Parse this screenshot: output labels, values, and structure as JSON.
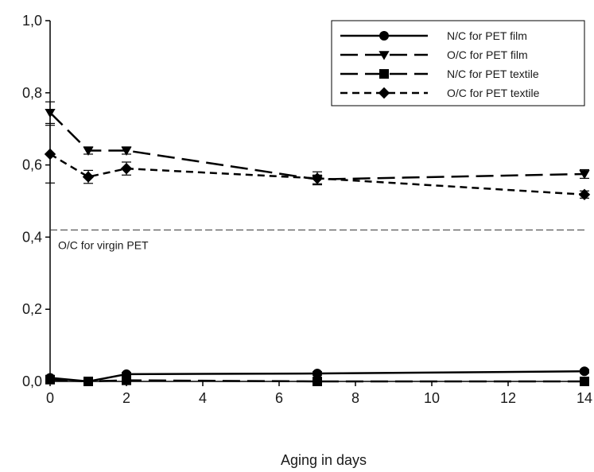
{
  "chart_data": {
    "type": "line",
    "xlabel": "Aging in days",
    "ylabel": "",
    "xlim": [
      0,
      14
    ],
    "ylim": [
      0,
      1.0
    ],
    "x_ticks": [
      0,
      2,
      4,
      6,
      8,
      10,
      12,
      14
    ],
    "x_tick_labels": [
      "0",
      "2",
      "4",
      "6",
      "8",
      "10",
      "12",
      "14"
    ],
    "y_ticks": [
      0,
      0.2,
      0.4,
      0.6,
      0.8,
      1.0
    ],
    "y_tick_labels": [
      "0,0",
      "0,2",
      "0,4",
      "0,6",
      "0,8",
      "1,0"
    ],
    "grid": false,
    "legend_position": "top-right",
    "series": [
      {
        "name": "N/C for PET film",
        "marker": "circle",
        "dash": "solid",
        "x": [
          0,
          1,
          2,
          7,
          14
        ],
        "y": [
          0.01,
          0.0,
          0.02,
          0.022,
          0.028
        ],
        "err": [
          0.005,
          0.003,
          0.005,
          0.005,
          0.005
        ]
      },
      {
        "name": "O/C for PET film",
        "marker": "triangle-down",
        "dash": "long-dash",
        "x": [
          0,
          1,
          2,
          7,
          14
        ],
        "y": [
          0.745,
          0.64,
          0.64,
          0.56,
          0.575
        ],
        "err": [
          0.03,
          0.01,
          0.01,
          0.012,
          0.012
        ]
      },
      {
        "name": "N/C for PET textile",
        "marker": "square",
        "dash": "long-dash",
        "x": [
          0,
          1,
          2,
          7,
          14
        ],
        "y": [
          0.005,
          0.0,
          0.003,
          0.0,
          0.0
        ],
        "err": [
          0.003,
          0.002,
          0.002,
          0.002,
          0.002
        ]
      },
      {
        "name": "O/C for PET textile",
        "marker": "diamond",
        "dash": "short-dash",
        "x": [
          0,
          1,
          2,
          7,
          14
        ],
        "y": [
          0.63,
          0.567,
          0.59,
          0.563,
          0.518
        ],
        "err": [
          0.08,
          0.018,
          0.018,
          0.018,
          0.01
        ]
      }
    ],
    "reference_line": {
      "y": 0.42,
      "label": "O/C for virgin PET"
    }
  }
}
